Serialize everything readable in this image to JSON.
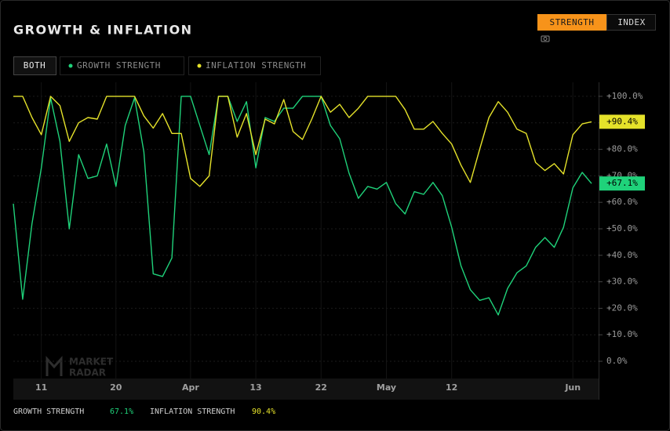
{
  "header": {
    "title": "GROWTH & INFLATION",
    "modes": [
      "STRENGTH",
      "INDEX"
    ]
  },
  "tabs": {
    "all": "BOTH"
  },
  "watermark": [
    "MARKET",
    "RADAR"
  ],
  "chart_data": {
    "type": "line",
    "categories": [
      null,
      null,
      null,
      "11",
      null,
      null,
      null,
      null,
      null,
      null,
      null,
      "20",
      null,
      null,
      null,
      null,
      null,
      null,
      null,
      "Apr",
      null,
      null,
      null,
      null,
      null,
      null,
      "13",
      null,
      null,
      null,
      null,
      null,
      null,
      "22",
      null,
      null,
      null,
      null,
      null,
      null,
      "May",
      null,
      null,
      null,
      null,
      null,
      null,
      "12",
      null,
      null,
      null,
      null,
      null,
      null,
      null,
      null,
      null,
      null,
      null,
      null,
      "Jun",
      null,
      null
    ],
    "series": [
      {
        "name": "GROWTH STRENGTH",
        "color": "#1fd27a",
        "current_label": "+67.1%",
        "footer_label": "67.1%",
        "values": [
          59.5,
          23.4,
          52,
          73,
          99.4,
          83,
          50,
          78,
          69,
          70,
          82,
          66,
          89,
          99.4,
          79,
          33,
          32,
          39,
          100,
          100,
          89,
          78,
          100,
          100,
          90.5,
          98,
          73,
          92,
          90.5,
          95.5,
          95.5,
          100,
          100,
          100,
          89,
          84,
          71,
          61.5,
          66,
          65,
          67.5,
          59.5,
          55.6,
          64,
          63,
          67.5,
          62.5,
          50.6,
          36,
          27,
          23,
          24,
          17.5,
          27.5,
          33.4,
          36,
          43,
          46.7,
          43,
          50.6,
          65.5,
          71.3,
          67.1
        ]
      },
      {
        "name": "INFLATION STRENGTH",
        "color": "#e5e22a",
        "current_label": "+90.4%",
        "footer_label": "90.4%",
        "values": [
          100,
          100,
          92,
          85.5,
          100,
          96.5,
          83,
          90,
          92,
          91.4,
          100,
          100,
          100,
          100,
          92.6,
          88,
          93.5,
          86,
          86,
          69,
          66,
          70,
          100,
          100,
          84.6,
          93.5,
          78,
          91.4,
          89.6,
          98.8,
          86.7,
          83.7,
          91.4,
          100,
          94,
          97,
          92,
          95.5,
          100,
          100,
          100,
          100,
          95,
          87.6,
          87.6,
          90.5,
          86,
          82,
          74,
          67.5,
          80,
          92,
          98,
          94,
          87.6,
          86,
          75,
          72,
          74.6,
          70.7,
          85.5,
          89.6,
          90.4
        ]
      }
    ],
    "ylim": [
      -6.5,
      105.3
    ],
    "yticks": [
      {
        "value": 0,
        "label": "0.0%"
      },
      {
        "value": 10,
        "label": "+10.0%"
      },
      {
        "value": 20,
        "label": "+20.0%"
      },
      {
        "value": 30,
        "label": "+30.0%"
      },
      {
        "value": 40,
        "label": "+40.0%"
      },
      {
        "value": 50,
        "label": "+50.0%"
      },
      {
        "value": 60,
        "label": "+60.0%"
      },
      {
        "value": 70,
        "label": "+70.0%"
      },
      {
        "value": 80,
        "label": "+80.0%"
      },
      {
        "value": 90,
        "label": "+90.0%"
      },
      {
        "value": 100,
        "label": "+100.0%"
      }
    ]
  }
}
